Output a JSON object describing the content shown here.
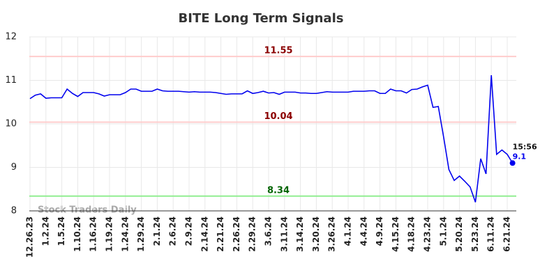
{
  "chart_data": {
    "type": "line",
    "title": "BITE Long Term Signals",
    "categories": [
      "12.26.23",
      null,
      null,
      "1.2.24",
      null,
      null,
      "1.5.24",
      null,
      null,
      "1.10.24",
      null,
      null,
      "1.16.24",
      null,
      null,
      "1.19.24",
      null,
      null,
      "1.24.24",
      null,
      null,
      "1.29.24",
      null,
      null,
      "2.1.24",
      null,
      null,
      "2.6.24",
      null,
      null,
      "2.9.24",
      null,
      null,
      "2.14.24",
      null,
      null,
      "2.21.24",
      null,
      null,
      "2.26.24",
      null,
      null,
      "2.29.24",
      null,
      null,
      "3.6.24",
      null,
      null,
      "3.11.24",
      null,
      null,
      "3.14.24",
      null,
      null,
      "3.20.24",
      null,
      null,
      "3.26.24",
      null,
      null,
      "4.1.24",
      null,
      null,
      "4.4.24",
      null,
      null,
      "4.9.24",
      null,
      null,
      "4.15.24",
      null,
      null,
      "4.18.24",
      null,
      null,
      "4.23.24",
      null,
      null,
      "5.1.24",
      null,
      null,
      "5.20.24",
      null,
      null,
      "5.23.24",
      null,
      null,
      "6.11.24",
      null,
      null,
      "6.21.24",
      null
    ],
    "values": [
      10.58,
      10.66,
      10.69,
      10.59,
      10.6,
      10.6,
      10.6,
      10.8,
      10.7,
      10.63,
      10.72,
      10.72,
      10.72,
      10.69,
      10.64,
      10.67,
      10.67,
      10.67,
      10.72,
      10.8,
      10.8,
      10.75,
      10.75,
      10.75,
      10.8,
      10.76,
      10.75,
      10.75,
      10.75,
      10.74,
      10.73,
      10.74,
      10.73,
      10.73,
      10.73,
      10.72,
      10.7,
      10.68,
      10.69,
      10.69,
      10.69,
      10.76,
      10.7,
      10.72,
      10.75,
      10.71,
      10.72,
      10.68,
      10.73,
      10.73,
      10.73,
      10.71,
      10.71,
      10.7,
      10.7,
      10.72,
      10.74,
      10.73,
      10.73,
      10.73,
      10.73,
      10.75,
      10.75,
      10.75,
      10.76,
      10.76,
      10.7,
      10.7,
      10.8,
      10.76,
      10.76,
      10.71,
      10.79,
      10.8,
      10.85,
      10.89,
      10.38,
      10.4,
      9.7,
      8.95,
      8.7,
      8.8,
      8.68,
      8.55,
      8.2,
      9.2,
      8.85,
      11.12,
      9.3,
      9.4,
      9.3,
      9.1
    ],
    "color": "#0000ee",
    "ylim": [
      8,
      12
    ],
    "yticks": [
      8,
      9,
      10,
      11,
      12
    ],
    "grid": true,
    "hlines": [
      {
        "value": 11.55,
        "color": "#ffcccc",
        "label_color": "#8b0000"
      },
      {
        "value": 10.04,
        "color": "#ffcccc",
        "label_color": "#8b0000"
      },
      {
        "value": 8.34,
        "color": "#90ee90",
        "label_color": "#006400"
      }
    ],
    "last_time": "15:56",
    "watermark": "Stock Traders Daily"
  }
}
